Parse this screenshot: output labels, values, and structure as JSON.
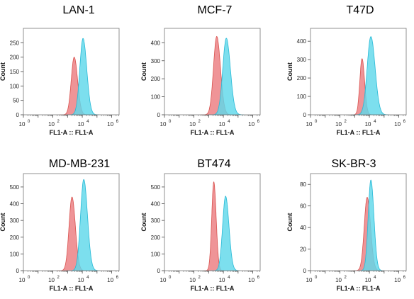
{
  "figure": {
    "colors": {
      "control": "#ec7c80",
      "sample": "#5fd8ea",
      "control_stroke": "#d9534f",
      "sample_stroke": "#27b9d6"
    },
    "y_axis_label": "Count",
    "x_axis_label": "FL1-A :: FL1-A"
  },
  "chart_data": [
    {
      "type": "area",
      "title": "LAN-1",
      "xlabel": "FL1-A :: FL1-A",
      "ylabel": "Count",
      "x_scale": "log",
      "xlim_exp": [
        0,
        6.5
      ],
      "xticks_exp": [
        0,
        2,
        4,
        6
      ],
      "ylim": [
        0,
        300
      ],
      "yticks": [
        0,
        50,
        100,
        150,
        200,
        250
      ],
      "series": [
        {
          "peak_log10": 3.45,
          "peak_count": 200,
          "width": 0.2
        },
        {
          "peak_log10": 4.05,
          "peak_count": 265,
          "width": 0.22
        }
      ]
    },
    {
      "type": "area",
      "title": "MCF-7",
      "xlabel": "FL1-A :: FL1-A",
      "ylabel": "Count",
      "x_scale": "log",
      "xlim_exp": [
        0,
        6.5
      ],
      "xticks_exp": [
        0,
        2,
        4,
        6
      ],
      "ylim": [
        0,
        480
      ],
      "yticks": [
        0,
        100,
        200,
        300,
        400
      ],
      "series": [
        {
          "peak_log10": 3.55,
          "peak_count": 435,
          "width": 0.22
        },
        {
          "peak_log10": 4.2,
          "peak_count": 425,
          "width": 0.24
        }
      ]
    },
    {
      "type": "area",
      "title": "T47D",
      "xlabel": "FL1-A :: FL1-A",
      "ylabel": "Count",
      "x_scale": "log",
      "xlim_exp": [
        0,
        6.5
      ],
      "xticks_exp": [
        0,
        2,
        4,
        6
      ],
      "ylim": [
        0,
        470
      ],
      "yticks": [
        0,
        100,
        200,
        300,
        400
      ],
      "series": [
        {
          "peak_log10": 3.5,
          "peak_count": 305,
          "width": 0.15
        },
        {
          "peak_log10": 4.1,
          "peak_count": 425,
          "width": 0.25
        }
      ]
    },
    {
      "type": "area",
      "title": "MD-MB-231",
      "xlabel": "FL1-A :: FL1-A",
      "ylabel": "Count",
      "x_scale": "log",
      "xlim_exp": [
        0,
        6.5
      ],
      "xticks_exp": [
        0,
        2,
        4,
        6
      ],
      "ylim": [
        0,
        580
      ],
      "yticks": [
        0,
        100,
        200,
        300,
        400,
        500
      ],
      "series": [
        {
          "peak_log10": 3.3,
          "peak_count": 440,
          "width": 0.2
        },
        {
          "peak_log10": 4.1,
          "peak_count": 545,
          "width": 0.22
        }
      ]
    },
    {
      "type": "area",
      "title": "BT474",
      "xlabel": "FL1-A :: FL1-A",
      "ylabel": "Count",
      "x_scale": "log",
      "xlim_exp": [
        0,
        6.5
      ],
      "xticks_exp": [
        0,
        2,
        4,
        6
      ],
      "ylim": [
        0,
        580
      ],
      "yticks": [
        0,
        100,
        200,
        300,
        400,
        500
      ],
      "series": [
        {
          "peak_log10": 3.35,
          "peak_count": 530,
          "width": 0.14
        },
        {
          "peak_log10": 4.15,
          "peak_count": 445,
          "width": 0.2
        }
      ]
    },
    {
      "type": "area",
      "title": "SK-BR-3",
      "xlabel": "FL1-A :: FL1-A",
      "ylabel": "Count",
      "x_scale": "log",
      "xlim_exp": [
        0,
        6.5
      ],
      "xticks_exp": [
        0,
        2,
        4,
        6
      ],
      "ylim": [
        0,
        90
      ],
      "yticks": [
        0,
        20,
        40,
        60,
        80
      ],
      "series": [
        {
          "peak_log10": 3.85,
          "peak_count": 68,
          "width": 0.2
        },
        {
          "peak_log10": 4.1,
          "peak_count": 84,
          "width": 0.18
        }
      ]
    }
  ]
}
